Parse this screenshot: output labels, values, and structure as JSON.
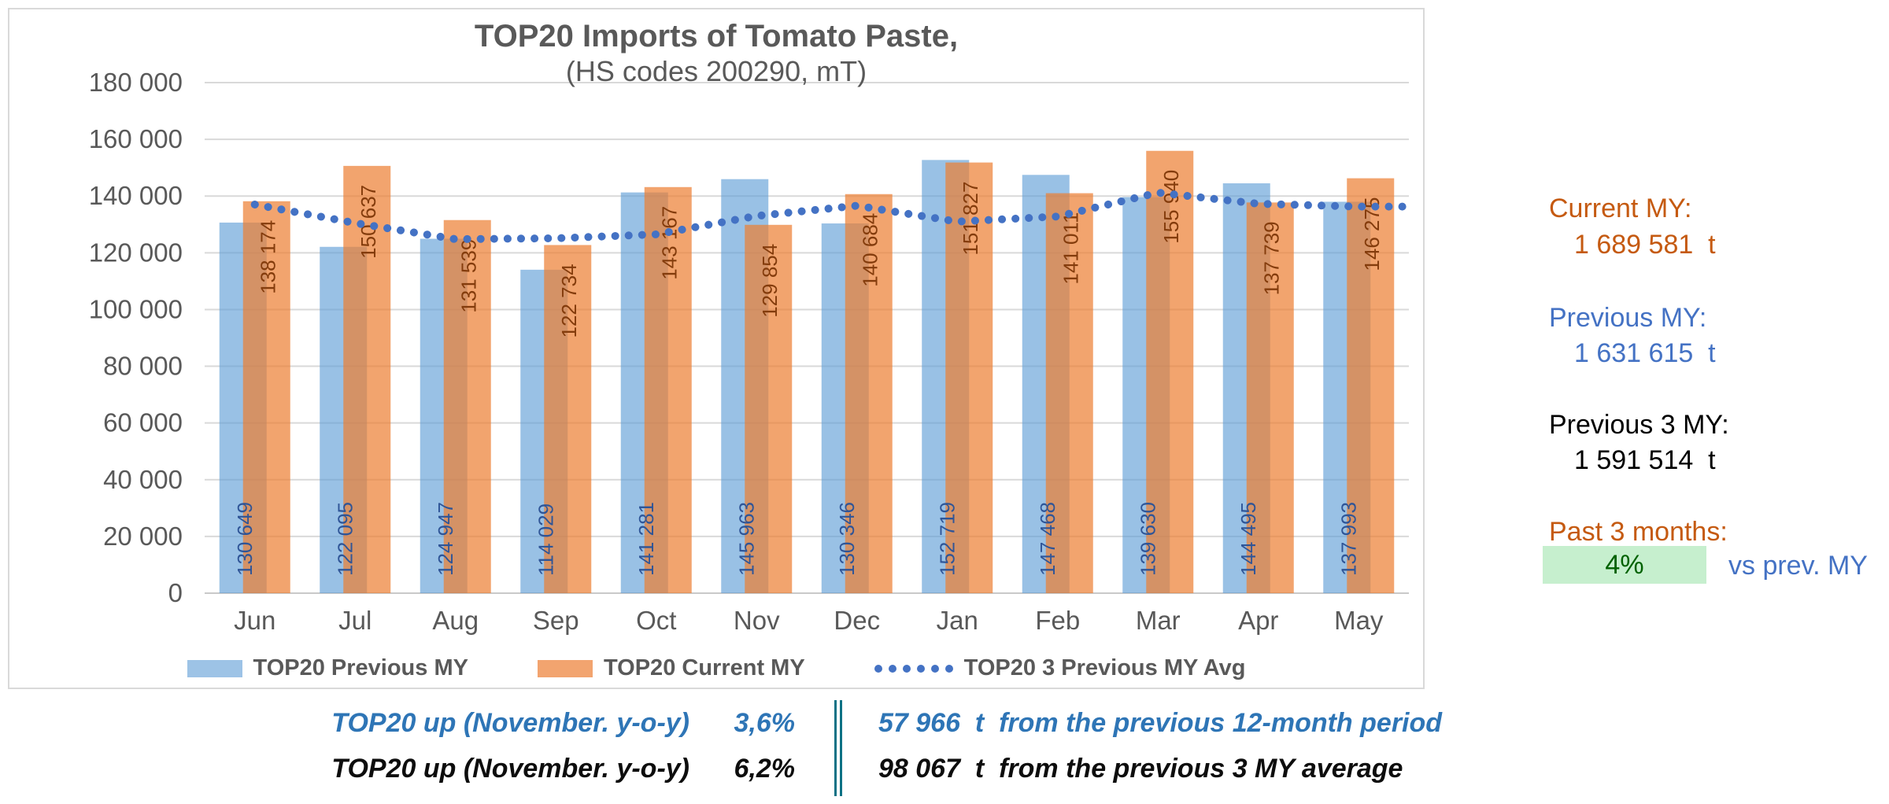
{
  "chart": {
    "title": "TOP20 Imports of Tomato Paste,",
    "subtitle": "(HS codes 200290, mT)"
  },
  "chart_data": {
    "type": "bar",
    "title": "TOP20 Imports of Tomato Paste,",
    "subtitle": "(HS codes 200290, mT)",
    "categories": [
      "Jun",
      "Jul",
      "Aug",
      "Sep",
      "Oct",
      "Nov",
      "Dec",
      "Jan",
      "Feb",
      "Mar",
      "Apr",
      "May"
    ],
    "series": [
      {
        "name": "TOP20 Previous MY",
        "type": "bar",
        "values": [
          130649,
          122095,
          124947,
          114029,
          141281,
          145963,
          130346,
          152719,
          147468,
          139630,
          144495,
          137993
        ]
      },
      {
        "name": "TOP20 Current MY",
        "type": "bar",
        "values": [
          138174,
          150637,
          131539,
          122734,
          143167,
          129854,
          140684,
          151827,
          141011,
          155940,
          137739,
          146275
        ]
      },
      {
        "name": "TOP20 3 Previous MY Avg",
        "type": "dotted-line",
        "values": [
          137000,
          130500,
          124800,
          125100,
          126500,
          133000,
          136600,
          131000,
          132800,
          141200,
          137300,
          136300
        ]
      }
    ],
    "xlabel": "",
    "ylabel": "",
    "ylim": [
      0,
      180000
    ],
    "ytick_step": 20000,
    "grid": true,
    "legend_position": "bottom"
  },
  "side_panel": {
    "current_my": {
      "label": "Current MY:",
      "value": "1 689 581  t"
    },
    "previous_my": {
      "label": "Previous MY:",
      "value": "1 631 615  t"
    },
    "previous_3my": {
      "label": "Previous 3 MY:",
      "value": "1 591 514  t"
    },
    "past_3_months": {
      "label": "Past 3 months:",
      "badge": "4%",
      "suffix": "vs prev. MY"
    }
  },
  "footer": {
    "rows": [
      {
        "label": "TOP20 up (November. y-o-y)",
        "pct": "3,6%",
        "detail": "57 966  t  from the previous 12-month period",
        "color": "#2E75B6"
      },
      {
        "label": "TOP20 up (November. y-o-y)",
        "pct": "6,2%",
        "detail": "98 067  t  from the previous 3 MY average",
        "color": "#0D0D0D"
      }
    ]
  },
  "colors": {
    "accent_blue": "#4472C4",
    "bar_blue_solid": "#9DC3E6",
    "bar_orange_solid": "#F2A46F",
    "bar_blue_rgba": "rgba(91,155,213,0.62)",
    "bar_orange_rgba": "rgba(237,125,49,0.70)",
    "label_blue": "#2F5597",
    "label_orange": "#843C0C",
    "grid": "#D9D9D9",
    "zero_line": "#C9C9C9",
    "axis_text": "#595959",
    "orange_dark": "#C55A11",
    "badge_bg": "#C6EFCE",
    "badge_text": "#006100",
    "teal": "#0E7285"
  }
}
